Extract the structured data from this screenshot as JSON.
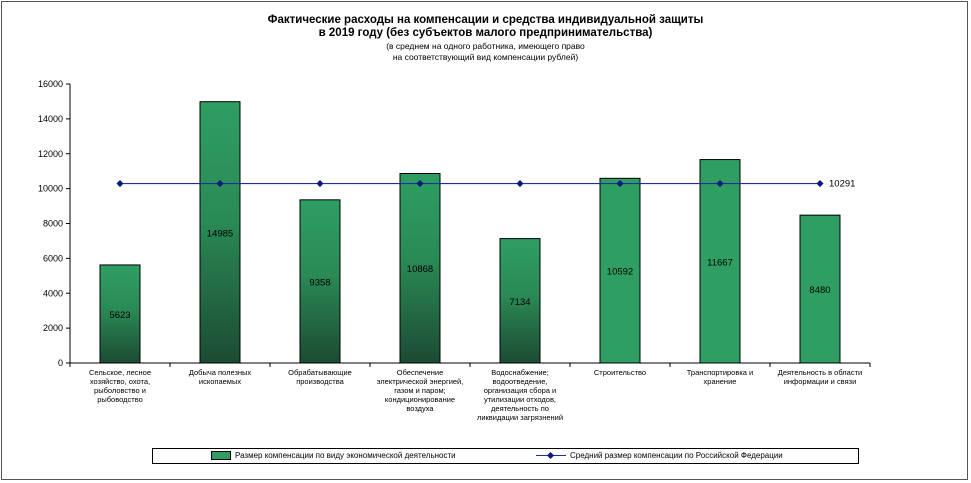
{
  "chart_data": {
    "type": "bar",
    "title": "Фактические расходы на компенсации и средства индивидуальной защиты в 2019 году (без субъектов малого предпринимательства)",
    "title_lines": [
      "Фактические расходы на компенсации и средства индивидуальной защиты",
      "в 2019 году (без субъектов малого предпринимательства)"
    ],
    "subtitle_lines": [
      "(в среднем на одного работника,  имеющего право",
      "на соответствующий вид компенсации рублей)"
    ],
    "categories": [
      [
        "Сельское, лесное",
        "хозяйство, охота,",
        "рыболовство и",
        "рыбоводство"
      ],
      [
        "Добыча полезных",
        "ископаемых"
      ],
      [
        "Обрабатывающие",
        "производства"
      ],
      [
        "Обеспечение",
        "электрической энергией,",
        "газом и паром;",
        "кондиционирование",
        "воздуха"
      ],
      [
        "Водоснабжение;",
        "водоотведение,",
        "организация сбора и",
        "утилизации отходов,",
        "деятельность по",
        "ликвидации загрязнений"
      ],
      [
        "Строительство"
      ],
      [
        "Транспортировка и",
        "хранение"
      ],
      [
        "Деятельность в области",
        "информации и связи"
      ]
    ],
    "series": [
      {
        "name": "Размер компенсации по виду экономической деятельности",
        "kind": "bar",
        "values": [
          5623,
          14985,
          9358,
          10868,
          7134,
          10592,
          11667,
          8480
        ],
        "value_labels": [
          "5623",
          "14985",
          "9358",
          "10868",
          "7134",
          "10592",
          "11667",
          "8480"
        ],
        "colors": [
          "#1f5b3b",
          "#1f5b3b",
          "#1f5b3b",
          "#1f5b3b",
          "#1f5b3b",
          "#2e9e63",
          "#2e9e63",
          "#2e9e63"
        ]
      },
      {
        "name": "Средний размер компенсации по Российской Федерации",
        "kind": "line",
        "values": [
          10291,
          10291,
          10291,
          10291,
          10291,
          10291,
          10291,
          10291
        ],
        "end_label": "10291",
        "color": "#1f2f9a"
      }
    ],
    "ylim": [
      0,
      16000
    ],
    "yticks": [
      0,
      2000,
      4000,
      6000,
      8000,
      10000,
      12000,
      14000,
      16000
    ],
    "ytick_labels": [
      "0",
      "2000",
      "4000",
      "6000",
      "8000",
      "10000",
      "12000",
      "14000",
      "16000"
    ],
    "grid": false,
    "legend_position": "bottom"
  }
}
